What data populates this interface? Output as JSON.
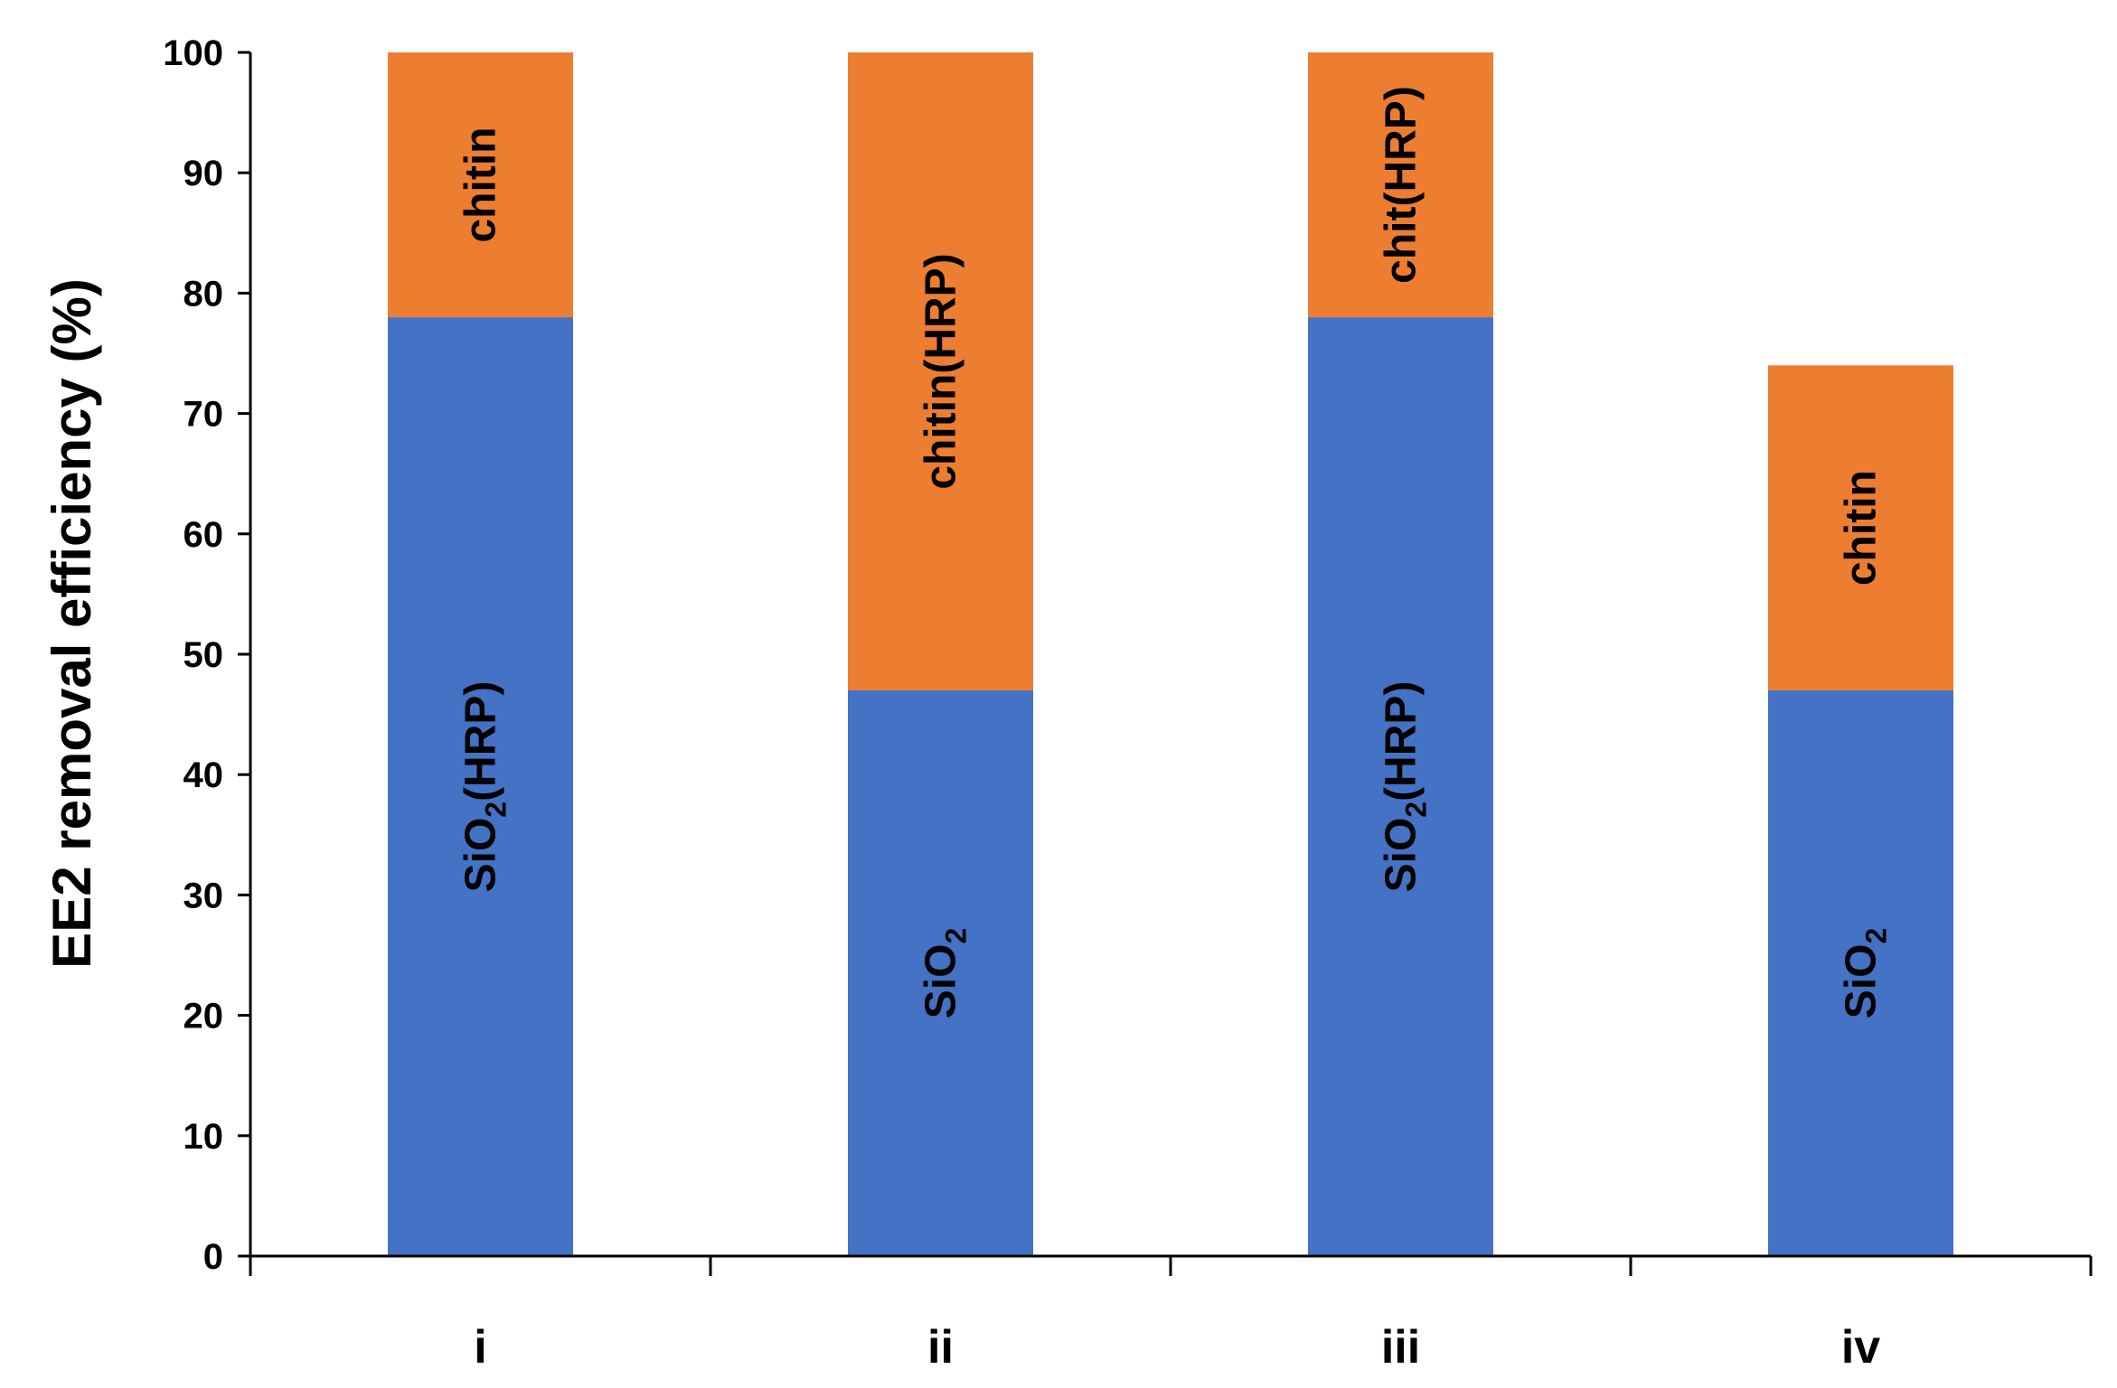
{
  "chart_data": {
    "type": "bar",
    "stacked": true,
    "orientation": "vertical",
    "categories": [
      "i",
      "ii",
      "iii",
      "iv"
    ],
    "ylabel": "EE2 removal efficiency (%)",
    "xlabel": "",
    "title": "",
    "ylim": [
      0,
      100
    ],
    "yticks": [
      0,
      10,
      20,
      30,
      40,
      50,
      60,
      70,
      80,
      90,
      100
    ],
    "grid": false,
    "legend": "none",
    "series": [
      {
        "color": "#4472C4",
        "values": [
          78,
          47,
          78,
          47
        ],
        "segment_labels": [
          {
            "main": "SiO",
            "sub": "2",
            "tail": "(HRP)"
          },
          {
            "main": "SiO",
            "sub": "2",
            "tail": ""
          },
          {
            "main": "SiO",
            "sub": "2",
            "tail": "(HRP)"
          },
          {
            "main": "SiO",
            "sub": "2",
            "tail": ""
          }
        ]
      },
      {
        "color": "#ED7D31",
        "values": [
          22,
          53,
          22,
          27
        ],
        "segment_labels": [
          {
            "main": "chitin",
            "sub": "",
            "tail": ""
          },
          {
            "main": "chitin(HRP)",
            "sub": "",
            "tail": ""
          },
          {
            "main": "chit(HRP)",
            "sub": "",
            "tail": ""
          },
          {
            "main": "chitin",
            "sub": "",
            "tail": ""
          }
        ]
      }
    ]
  }
}
